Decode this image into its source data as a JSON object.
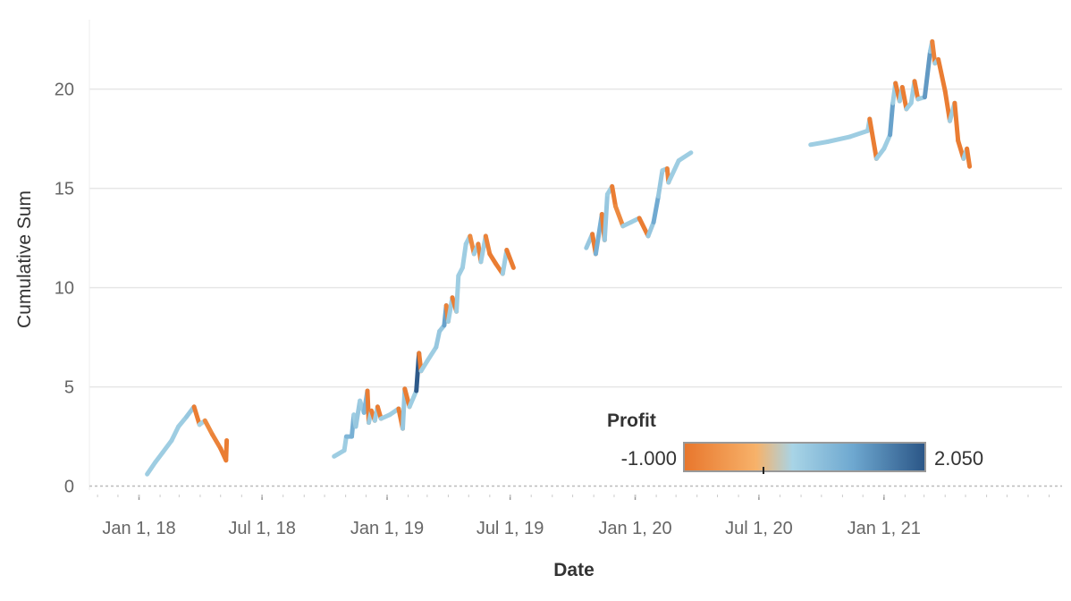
{
  "chart_data": {
    "type": "line",
    "title": "",
    "xlabel": "Date",
    "ylabel": "Cumulative Sum",
    "x_ticks": [
      "Jan 1, 18",
      "Jul 1, 18",
      "Jan 1, 19",
      "Jul 1, 19",
      "Jan 1, 20",
      "Jul 1, 20",
      "Jan 1, 21"
    ],
    "x_tick_dates": [
      "2018-01-01",
      "2018-07-01",
      "2019-01-01",
      "2019-07-01",
      "2020-01-01",
      "2020-07-01",
      "2021-01-01"
    ],
    "xlim": [
      "2017-10-20",
      "2021-09-20"
    ],
    "y_ticks": [
      0,
      5,
      10,
      15,
      20
    ],
    "ylim": [
      -0.2,
      23.5
    ],
    "grid": true,
    "color_legend": {
      "title": "Profit",
      "min_label": "-1.000",
      "max_label": "2.050",
      "min": -1.0,
      "max": 2.05,
      "colors": [
        "#e8762c",
        "#f7b26a",
        "#a8d4e6",
        "#6ea8d0",
        "#2a5586"
      ],
      "placement": "bottom-right"
    },
    "segments": [
      {
        "points": [
          [
            "2018-01-13",
            0.6,
            0.4
          ],
          [
            "2018-01-25",
            1.2,
            0.5
          ],
          [
            "2018-02-05",
            1.7,
            0.5
          ],
          [
            "2018-02-18",
            2.3,
            0.5
          ],
          [
            "2018-02-28",
            3.0,
            0.5
          ],
          [
            "2018-03-12",
            3.5,
            0.5
          ],
          [
            "2018-03-23",
            4.0,
            0.6
          ],
          [
            "2018-03-31",
            3.1,
            -0.9
          ],
          [
            "2018-04-08",
            3.3,
            0.4
          ],
          [
            "2018-04-19",
            2.6,
            -0.7
          ],
          [
            "2018-05-01",
            1.9,
            -0.8
          ],
          [
            "2018-05-09",
            1.3,
            -0.9
          ],
          [
            "2018-05-10",
            2.3,
            -0.9
          ]
        ]
      },
      {
        "points": [
          [
            "2018-10-15",
            1.5,
            0.5
          ],
          [
            "2018-10-30",
            1.8,
            0.5
          ],
          [
            "2018-11-02",
            2.5,
            0.5
          ],
          [
            "2018-11-10",
            2.5,
            0.9
          ],
          [
            "2018-11-13",
            3.6,
            1.0
          ],
          [
            "2018-11-16",
            3.0,
            0.5
          ],
          [
            "2018-11-22",
            4.3,
            0.6
          ],
          [
            "2018-11-28",
            3.7,
            0.5
          ],
          [
            "2018-12-03",
            4.8,
            0.9
          ],
          [
            "2018-12-05",
            3.2,
            -0.9
          ],
          [
            "2018-12-09",
            3.8,
            0.5
          ],
          [
            "2018-12-14",
            3.3,
            -0.9
          ],
          [
            "2018-12-18",
            4.0,
            0.5
          ],
          [
            "2018-12-23",
            3.4,
            -0.9
          ],
          [
            "2019-01-05",
            3.6,
            0.5
          ],
          [
            "2019-01-18",
            3.9,
            0.5
          ],
          [
            "2019-01-24",
            2.9,
            -0.9
          ],
          [
            "2019-01-27",
            4.9,
            0.6
          ],
          [
            "2019-02-03",
            4.0,
            -0.9
          ],
          [
            "2019-02-13",
            4.8,
            0.5
          ],
          [
            "2019-02-17",
            6.7,
            2.0
          ],
          [
            "2019-02-20",
            5.8,
            -0.9
          ],
          [
            "2019-03-01",
            6.3,
            0.5
          ],
          [
            "2019-03-14",
            7.0,
            0.5
          ],
          [
            "2019-03-19",
            7.8,
            0.6
          ],
          [
            "2019-03-26",
            8.1,
            0.6
          ],
          [
            "2019-03-29",
            9.1,
            1.2
          ],
          [
            "2019-04-01",
            8.3,
            -0.8
          ],
          [
            "2019-04-07",
            9.5,
            0.5
          ],
          [
            "2019-04-13",
            8.8,
            -0.9
          ],
          [
            "2019-04-16",
            10.6,
            0.5
          ],
          [
            "2019-04-22",
            11.0,
            0.5
          ],
          [
            "2019-04-27",
            12.2,
            0.5
          ],
          [
            "2019-05-03",
            12.6,
            0.5
          ],
          [
            "2019-05-09",
            11.7,
            -0.7
          ],
          [
            "2019-05-15",
            12.2,
            0.5
          ],
          [
            "2019-05-19",
            11.3,
            -0.8
          ],
          [
            "2019-05-26",
            12.6,
            0.5
          ],
          [
            "2019-06-01",
            11.7,
            -0.8
          ],
          [
            "2019-06-10",
            11.2,
            -0.9
          ],
          [
            "2019-06-20",
            10.7,
            -0.9
          ],
          [
            "2019-06-26",
            11.9,
            0.5
          ],
          [
            "2019-07-06",
            11.0,
            -0.9
          ]
        ]
      },
      {
        "points": [
          [
            "2019-10-21",
            12.0,
            1.0
          ],
          [
            "2019-10-30",
            12.7,
            0.6
          ],
          [
            "2019-11-04",
            11.7,
            -0.9
          ],
          [
            "2019-11-13",
            13.7,
            1.0
          ],
          [
            "2019-11-17",
            12.4,
            -0.9
          ],
          [
            "2019-11-21",
            14.7,
            0.6
          ],
          [
            "2019-11-28",
            15.1,
            0.5
          ],
          [
            "2019-12-03",
            14.1,
            -0.9
          ],
          [
            "2019-12-14",
            13.1,
            -0.7
          ],
          [
            "2019-12-26",
            13.3,
            0.5
          ],
          [
            "2020-01-07",
            13.5,
            0.5
          ],
          [
            "2020-01-20",
            12.6,
            -0.9
          ],
          [
            "2020-01-28",
            13.3,
            0.6
          ],
          [
            "2020-02-04",
            14.6,
            1.1
          ],
          [
            "2020-02-10",
            15.9,
            0.6
          ],
          [
            "2020-02-17",
            16.0,
            0.5
          ],
          [
            "2020-02-19",
            15.3,
            -0.8
          ],
          [
            "2020-03-05",
            16.4,
            0.5
          ],
          [
            "2020-03-23",
            16.8,
            0.5
          ]
        ]
      },
      {
        "points": [
          [
            "2020-09-15",
            17.2,
            0.5
          ],
          [
            "2020-10-10",
            17.35,
            0.5
          ],
          [
            "2020-11-12",
            17.6,
            0.5
          ],
          [
            "2020-12-08",
            17.9,
            0.5
          ],
          [
            "2020-12-11",
            18.5,
            0.5
          ],
          [
            "2020-12-21",
            16.5,
            -0.9
          ],
          [
            "2021-01-01",
            17.0,
            0.5
          ],
          [
            "2021-01-10",
            17.7,
            0.5
          ],
          [
            "2021-01-14",
            19.3,
            1.2
          ],
          [
            "2021-01-18",
            20.3,
            0.5
          ],
          [
            "2021-01-24",
            19.4,
            -0.9
          ],
          [
            "2021-01-28",
            20.1,
            0.5
          ],
          [
            "2021-02-03",
            19.0,
            -0.9
          ],
          [
            "2021-02-10",
            19.3,
            0.5
          ],
          [
            "2021-02-15",
            20.4,
            0.5
          ],
          [
            "2021-02-20",
            19.5,
            -0.9
          ],
          [
            "2021-03-02",
            19.6,
            0.5
          ],
          [
            "2021-03-10",
            21.9,
            1.3
          ],
          [
            "2021-03-13",
            22.4,
            0.6
          ],
          [
            "2021-03-17",
            21.3,
            -0.8
          ],
          [
            "2021-03-22",
            21.5,
            0.5
          ],
          [
            "2021-04-01",
            19.9,
            -0.9
          ],
          [
            "2021-04-08",
            18.4,
            -0.9
          ],
          [
            "2021-04-15",
            19.3,
            0.5
          ],
          [
            "2021-04-20",
            17.4,
            -0.9
          ],
          [
            "2021-04-28",
            16.5,
            -0.9
          ],
          [
            "2021-05-03",
            17.0,
            0.5
          ],
          [
            "2021-05-07",
            16.1,
            -0.9
          ]
        ]
      }
    ]
  }
}
